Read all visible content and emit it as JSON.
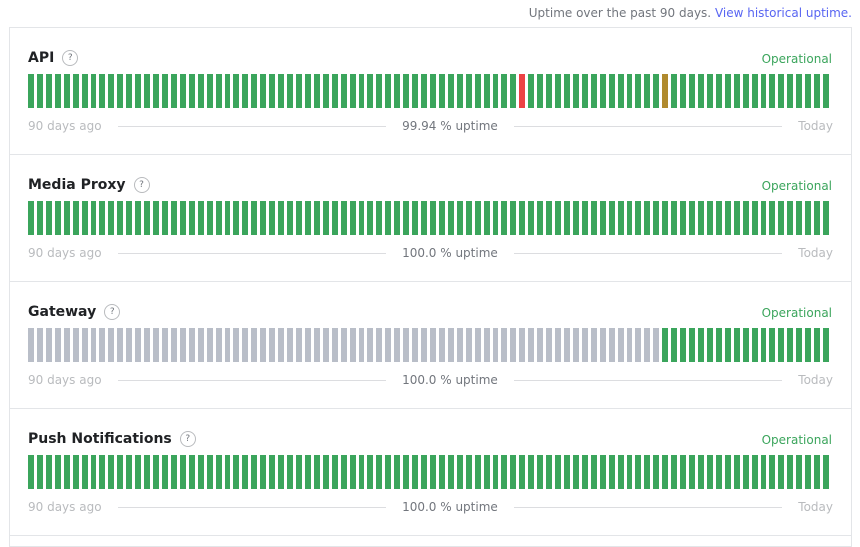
{
  "header": {
    "text": "Uptime over the past 90 days.",
    "link": "View historical uptime."
  },
  "components": [
    {
      "name": "API",
      "help": "?",
      "status": "Operational",
      "start_label": "90 days ago",
      "uptime": "99.94 % uptime",
      "end_label": "Today",
      "bar_colors": [
        "#3ba55c",
        "#3ba55c",
        "#3ba55c",
        "#3ba55c",
        "#3ba55c",
        "#3ba55c",
        "#3ba55c",
        "#3ba55c",
        "#3ba55c",
        "#3ba55c",
        "#3ba55c",
        "#3ba55c",
        "#3ba55c",
        "#3ba55c",
        "#3ba55c",
        "#3ba55c",
        "#3ba55c",
        "#3ba55c",
        "#3ba55c",
        "#3ba55c",
        "#3ba55c",
        "#3ba55c",
        "#3ba55c",
        "#3ba55c",
        "#3ba55c",
        "#3ba55c",
        "#3ba55c",
        "#3ba55c",
        "#3ba55c",
        "#3ba55c",
        "#3ba55c",
        "#3ba55c",
        "#3ba55c",
        "#3ba55c",
        "#3ba55c",
        "#3ba55c",
        "#3ba55c",
        "#3ba55c",
        "#3ba55c",
        "#3ba55c",
        "#3ba55c",
        "#3ba55c",
        "#3ba55c",
        "#3ba55c",
        "#3ba55c",
        "#3ba55c",
        "#3ba55c",
        "#3ba55c",
        "#3ba55c",
        "#3ba55c",
        "#3ba55c",
        "#3ba55c",
        "#3ba55c",
        "#3ba55c",
        "#3ba55c",
        "#ed4245",
        "#3ba55c",
        "#3ba55c",
        "#3ba55c",
        "#3ba55c",
        "#3ba55c",
        "#3ba55c",
        "#3ba55c",
        "#3ba55c",
        "#3ba55c",
        "#3ba55c",
        "#3ba55c",
        "#3ba55c",
        "#3ba55c",
        "#3ba55c",
        "#3ba55c",
        "#b08a2e",
        "#3ba55c",
        "#3ba55c",
        "#3ba55c",
        "#3ba55c",
        "#3ba55c",
        "#3ba55c",
        "#3ba55c",
        "#3ba55c",
        "#3ba55c",
        "#3ba55c",
        "#3ba55c",
        "#3ba55c",
        "#3ba55c",
        "#3ba55c",
        "#3ba55c",
        "#3ba55c",
        "#3ba55c",
        "#3ba55c"
      ]
    },
    {
      "name": "Media Proxy",
      "help": "?",
      "status": "Operational",
      "start_label": "90 days ago",
      "uptime": "100.0 % uptime",
      "end_label": "Today",
      "bar_colors": [
        "#3ba55c",
        "#3ba55c",
        "#3ba55c",
        "#3ba55c",
        "#3ba55c",
        "#3ba55c",
        "#3ba55c",
        "#3ba55c",
        "#3ba55c",
        "#3ba55c",
        "#3ba55c",
        "#3ba55c",
        "#3ba55c",
        "#3ba55c",
        "#3ba55c",
        "#3ba55c",
        "#3ba55c",
        "#3ba55c",
        "#3ba55c",
        "#3ba55c",
        "#3ba55c",
        "#3ba55c",
        "#3ba55c",
        "#3ba55c",
        "#3ba55c",
        "#3ba55c",
        "#3ba55c",
        "#3ba55c",
        "#3ba55c",
        "#3ba55c",
        "#3ba55c",
        "#3ba55c",
        "#3ba55c",
        "#3ba55c",
        "#3ba55c",
        "#3ba55c",
        "#3ba55c",
        "#3ba55c",
        "#3ba55c",
        "#3ba55c",
        "#3ba55c",
        "#3ba55c",
        "#3ba55c",
        "#3ba55c",
        "#3ba55c",
        "#3ba55c",
        "#3ba55c",
        "#3ba55c",
        "#3ba55c",
        "#3ba55c",
        "#3ba55c",
        "#3ba55c",
        "#3ba55c",
        "#3ba55c",
        "#3ba55c",
        "#3ba55c",
        "#3ba55c",
        "#3ba55c",
        "#3ba55c",
        "#3ba55c",
        "#3ba55c",
        "#3ba55c",
        "#3ba55c",
        "#3ba55c",
        "#3ba55c",
        "#3ba55c",
        "#3ba55c",
        "#3ba55c",
        "#3ba55c",
        "#3ba55c",
        "#3ba55c",
        "#3ba55c",
        "#3ba55c",
        "#3ba55c",
        "#3ba55c",
        "#3ba55c",
        "#3ba55c",
        "#3ba55c",
        "#3ba55c",
        "#3ba55c",
        "#3ba55c",
        "#3ba55c",
        "#3ba55c",
        "#3ba55c",
        "#3ba55c",
        "#3ba55c",
        "#3ba55c",
        "#3ba55c",
        "#3ba55c",
        "#3ba55c"
      ]
    },
    {
      "name": "Gateway",
      "help": "?",
      "status": "Operational",
      "start_label": "90 days ago",
      "uptime": "100.0 % uptime",
      "end_label": "Today",
      "bar_colors": [
        "#b9bec8",
        "#b9bec8",
        "#b9bec8",
        "#b9bec8",
        "#b9bec8",
        "#b9bec8",
        "#b9bec8",
        "#b9bec8",
        "#b9bec8",
        "#b9bec8",
        "#b9bec8",
        "#b9bec8",
        "#b9bec8",
        "#b9bec8",
        "#b9bec8",
        "#b9bec8",
        "#b9bec8",
        "#b9bec8",
        "#b9bec8",
        "#b9bec8",
        "#b9bec8",
        "#b9bec8",
        "#b9bec8",
        "#b9bec8",
        "#b9bec8",
        "#b9bec8",
        "#b9bec8",
        "#b9bec8",
        "#b9bec8",
        "#b9bec8",
        "#b9bec8",
        "#b9bec8",
        "#b9bec8",
        "#b9bec8",
        "#b9bec8",
        "#b9bec8",
        "#b9bec8",
        "#b9bec8",
        "#b9bec8",
        "#b9bec8",
        "#b9bec8",
        "#b9bec8",
        "#b9bec8",
        "#b9bec8",
        "#b9bec8",
        "#b9bec8",
        "#b9bec8",
        "#b9bec8",
        "#b9bec8",
        "#b9bec8",
        "#b9bec8",
        "#b9bec8",
        "#b9bec8",
        "#b9bec8",
        "#b9bec8",
        "#b9bec8",
        "#b9bec8",
        "#b9bec8",
        "#b9bec8",
        "#b9bec8",
        "#b9bec8",
        "#b9bec8",
        "#b9bec8",
        "#b9bec8",
        "#b9bec8",
        "#b9bec8",
        "#b9bec8",
        "#b9bec8",
        "#b9bec8",
        "#b9bec8",
        "#b9bec8",
        "#3ba55c",
        "#3ba55c",
        "#3ba55c",
        "#3ba55c",
        "#3ba55c",
        "#3ba55c",
        "#3ba55c",
        "#3ba55c",
        "#3ba55c",
        "#3ba55c",
        "#3ba55c",
        "#3ba55c",
        "#3ba55c",
        "#3ba55c",
        "#3ba55c",
        "#3ba55c",
        "#3ba55c",
        "#3ba55c",
        "#3ba55c"
      ]
    },
    {
      "name": "Push Notifications",
      "help": "?",
      "status": "Operational",
      "start_label": "90 days ago",
      "uptime": "100.0 % uptime",
      "end_label": "Today",
      "bar_colors": [
        "#3ba55c",
        "#3ba55c",
        "#3ba55c",
        "#3ba55c",
        "#3ba55c",
        "#3ba55c",
        "#3ba55c",
        "#3ba55c",
        "#3ba55c",
        "#3ba55c",
        "#3ba55c",
        "#3ba55c",
        "#3ba55c",
        "#3ba55c",
        "#3ba55c",
        "#3ba55c",
        "#3ba55c",
        "#3ba55c",
        "#3ba55c",
        "#3ba55c",
        "#3ba55c",
        "#3ba55c",
        "#3ba55c",
        "#3ba55c",
        "#3ba55c",
        "#3ba55c",
        "#3ba55c",
        "#3ba55c",
        "#3ba55c",
        "#3ba55c",
        "#3ba55c",
        "#3ba55c",
        "#3ba55c",
        "#3ba55c",
        "#3ba55c",
        "#3ba55c",
        "#3ba55c",
        "#3ba55c",
        "#3ba55c",
        "#3ba55c",
        "#3ba55c",
        "#3ba55c",
        "#3ba55c",
        "#3ba55c",
        "#3ba55c",
        "#3ba55c",
        "#3ba55c",
        "#3ba55c",
        "#3ba55c",
        "#3ba55c",
        "#3ba55c",
        "#3ba55c",
        "#3ba55c",
        "#3ba55c",
        "#3ba55c",
        "#3ba55c",
        "#3ba55c",
        "#3ba55c",
        "#3ba55c",
        "#3ba55c",
        "#3ba55c",
        "#3ba55c",
        "#3ba55c",
        "#3ba55c",
        "#3ba55c",
        "#3ba55c",
        "#3ba55c",
        "#3ba55c",
        "#3ba55c",
        "#3ba55c",
        "#3ba55c",
        "#3ba55c",
        "#3ba55c",
        "#3ba55c",
        "#3ba55c",
        "#3ba55c",
        "#3ba55c",
        "#3ba55c",
        "#3ba55c",
        "#3ba55c",
        "#3ba55c",
        "#3ba55c",
        "#3ba55c",
        "#3ba55c",
        "#3ba55c",
        "#3ba55c",
        "#3ba55c",
        "#3ba55c",
        "#3ba55c",
        "#3ba55c"
      ]
    }
  ]
}
